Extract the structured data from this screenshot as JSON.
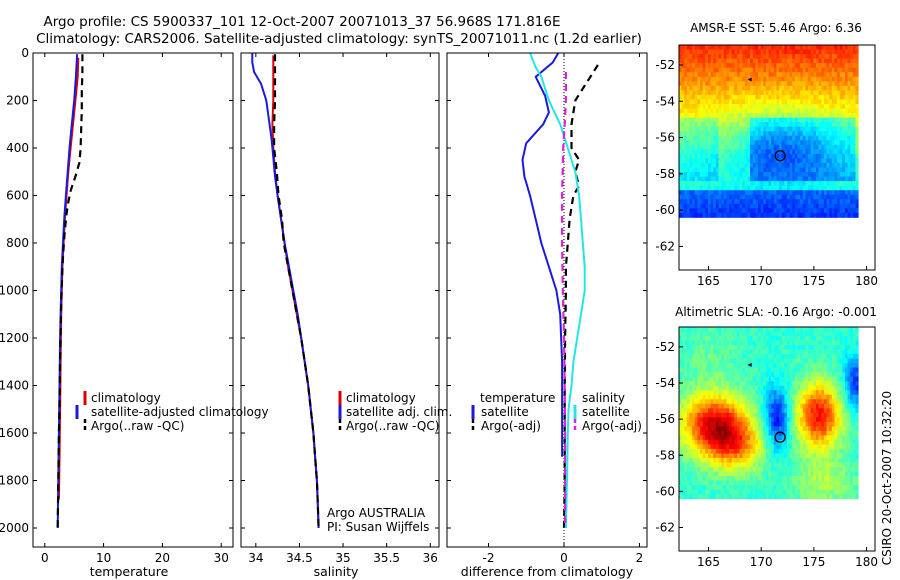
{
  "header": {
    "title_line1": "Argo profile: CS 5900337_101 12-Oct-2007 20071013_37 56.968S 171.816E",
    "title_line2": "Climatology: CARS2006. Satellite-adjusted climatology: synTS_20071011.nc (1.2d earlier)"
  },
  "colors": {
    "climatology": "#dd0000",
    "satellite": "#1a1adc",
    "argo": "#000000",
    "salinity_satellite": "#22e6e6",
    "salinity_argo": "#dd22dd"
  },
  "chart_data": [
    {
      "type": "line",
      "id": "temperature",
      "xlabel": "temperature",
      "xticks": [
        "0",
        "10",
        "20",
        "30"
      ],
      "yticks": [
        "0",
        "200",
        "400",
        "600",
        "800",
        "1000",
        "1200",
        "1400",
        "1600",
        "1800",
        "2000"
      ],
      "xlim": [
        -2,
        32
      ],
      "ylim": [
        2080,
        0
      ],
      "y_reversed": true,
      "legend_placement": "lower-right",
      "legend": [
        "climatology",
        "satellite-adjusted climatology",
        "Argo(..raw -QC)"
      ],
      "series": [
        {
          "name": "climatology",
          "color_key": "climatology",
          "dash": "solid",
          "points": [
            [
              5.7,
              20
            ],
            [
              5.6,
              100
            ],
            [
              5.2,
              200
            ],
            [
              4.8,
              300
            ],
            [
              4.4,
              400
            ],
            [
              4.0,
              500
            ],
            [
              3.7,
              600
            ],
            [
              3.4,
              700
            ],
            [
              3.2,
              800
            ],
            [
              3.0,
              900
            ],
            [
              2.9,
              1000
            ],
            [
              2.8,
              1100
            ],
            [
              2.75,
              1200
            ],
            [
              2.7,
              1300
            ],
            [
              2.65,
              1400
            ],
            [
              2.6,
              1500
            ],
            [
              2.55,
              1600
            ],
            [
              2.5,
              1700
            ],
            [
              2.45,
              1800
            ],
            [
              2.4,
              1880
            ]
          ]
        },
        {
          "name": "satellite-adjusted climatology",
          "color_key": "satellite",
          "dash": "solid",
          "points": [
            [
              5.5,
              5
            ],
            [
              5.3,
              100
            ],
            [
              5.0,
              200
            ],
            [
              4.6,
              300
            ],
            [
              4.2,
              400
            ],
            [
              3.9,
              500
            ],
            [
              3.6,
              600
            ],
            [
              3.3,
              700
            ],
            [
              3.1,
              800
            ],
            [
              2.9,
              900
            ],
            [
              2.8,
              1000
            ],
            [
              2.7,
              1100
            ],
            [
              2.6,
              1200
            ],
            [
              2.55,
              1300
            ],
            [
              2.5,
              1400
            ],
            [
              2.45,
              1500
            ],
            [
              2.4,
              1600
            ],
            [
              2.35,
              1700
            ],
            [
              2.3,
              1800
            ],
            [
              2.25,
              1900
            ],
            [
              2.2,
              2000
            ]
          ]
        },
        {
          "name": "Argo(..raw -QC)",
          "color_key": "argo",
          "dash": "dash",
          "points": [
            [
              6.4,
              5
            ],
            [
              6.4,
              80
            ],
            [
              6.3,
              160
            ],
            [
              6.3,
              240
            ],
            [
              6.2,
              320
            ],
            [
              6.1,
              400
            ],
            [
              5.9,
              460
            ],
            [
              5.2,
              520
            ],
            [
              4.4,
              580
            ],
            [
              3.9,
              640
            ],
            [
              3.6,
              700
            ],
            [
              3.3,
              780
            ],
            [
              3.1,
              860
            ],
            [
              2.95,
              940
            ],
            [
              2.85,
              1020
            ],
            [
              2.75,
              1100
            ],
            [
              2.7,
              1200
            ],
            [
              2.6,
              1300
            ],
            [
              2.55,
              1400
            ],
            [
              2.5,
              1500
            ],
            [
              2.4,
              1600
            ],
            [
              2.35,
              1700
            ],
            [
              2.3,
              1800
            ],
            [
              2.25,
              1900
            ],
            [
              2.2,
              2000
            ]
          ]
        }
      ]
    },
    {
      "type": "line",
      "id": "salinity",
      "xlabel": "salinity",
      "xticks": [
        "34",
        "34.5",
        "35",
        "35.5",
        "36"
      ],
      "yticks": [],
      "xlim": [
        33.83,
        36.1
      ],
      "ylim": [
        2080,
        0
      ],
      "y_reversed": true,
      "legend_placement": "lower-right",
      "legend": [
        "climatology",
        "satellite adj. clim.",
        "Argo(..raw -QC)"
      ],
      "annotations": [
        "Argo AUSTRALIA",
        "PI: Susan Wijffels"
      ],
      "series": [
        {
          "name": "climatology",
          "color_key": "climatology",
          "dash": "solid",
          "points": [
            [
              34.2,
              10
            ],
            [
              34.2,
              100
            ],
            [
              34.2,
              200
            ],
            [
              34.19,
              300
            ],
            [
              34.2,
              400
            ],
            [
              34.22,
              500
            ],
            [
              34.25,
              600
            ],
            [
              34.29,
              700
            ],
            [
              34.33,
              800
            ],
            [
              34.37,
              900
            ],
            [
              34.42,
              1000
            ],
            [
              34.47,
              1100
            ],
            [
              34.52,
              1200
            ],
            [
              34.56,
              1300
            ],
            [
              34.6,
              1400
            ],
            [
              34.63,
              1500
            ],
            [
              34.66,
              1600
            ],
            [
              34.68,
              1700
            ],
            [
              34.7,
              1800
            ],
            [
              34.71,
              1900
            ],
            [
              34.72,
              2000
            ]
          ]
        },
        {
          "name": "satellite adj. clim.",
          "color_key": "satellite",
          "dash": "solid",
          "points": [
            [
              33.96,
              0
            ],
            [
              33.96,
              40
            ],
            [
              33.98,
              80
            ],
            [
              34.06,
              130
            ],
            [
              34.12,
              200
            ],
            [
              34.15,
              280
            ],
            [
              34.18,
              360
            ],
            [
              34.2,
              440
            ],
            [
              34.22,
              520
            ],
            [
              34.25,
              600
            ],
            [
              34.29,
              700
            ],
            [
              34.33,
              800
            ],
            [
              34.38,
              900
            ],
            [
              34.43,
              1000
            ],
            [
              34.48,
              1100
            ],
            [
              34.52,
              1200
            ],
            [
              34.56,
              1300
            ],
            [
              34.6,
              1400
            ],
            [
              34.63,
              1500
            ],
            [
              34.66,
              1600
            ],
            [
              34.68,
              1700
            ],
            [
              34.7,
              1800
            ],
            [
              34.71,
              1900
            ],
            [
              34.72,
              2000
            ]
          ]
        },
        {
          "name": "Argo(..raw -QC)",
          "color_key": "argo",
          "dash": "dash",
          "points": [
            [
              34.22,
              5
            ],
            [
              34.22,
              100
            ],
            [
              34.22,
              200
            ],
            [
              34.21,
              300
            ],
            [
              34.21,
              400
            ],
            [
              34.24,
              500
            ],
            [
              34.26,
              600
            ],
            [
              34.3,
              700
            ],
            [
              34.32,
              800
            ],
            [
              34.37,
              900
            ],
            [
              34.42,
              1000
            ],
            [
              34.47,
              1100
            ],
            [
              34.52,
              1200
            ],
            [
              34.56,
              1300
            ],
            [
              34.6,
              1400
            ],
            [
              34.63,
              1500
            ],
            [
              34.66,
              1600
            ],
            [
              34.68,
              1700
            ],
            [
              34.7,
              1800
            ],
            [
              34.71,
              1900
            ],
            [
              34.72,
              2000
            ]
          ]
        }
      ]
    },
    {
      "type": "line",
      "id": "difference",
      "xlabel": "difference from climatology",
      "xticks": [
        "-2",
        "0",
        "2"
      ],
      "yticks": [],
      "xlim": [
        -3.1,
        2.2
      ],
      "ylim": [
        2080,
        0
      ],
      "y_reversed": true,
      "zero_line": true,
      "legend_placement": "lower-center",
      "legend_temperature_heading": "temperature",
      "legend_salinity_heading": "salinity",
      "legend_temperature": [
        "satellite",
        "Argo(-adj)"
      ],
      "legend_salinity": [
        "satellite",
        "Argo(-adj)"
      ],
      "series": [
        {
          "name": "temperature satellite",
          "color_key": "satellite",
          "dash": "solid",
          "points": [
            [
              -0.15,
              0
            ],
            [
              -0.3,
              40
            ],
            [
              -0.75,
              100
            ],
            [
              -0.5,
              180
            ],
            [
              -0.4,
              250
            ],
            [
              -0.55,
              300
            ],
            [
              -1.0,
              380
            ],
            [
              -1.1,
              450
            ],
            [
              -1.05,
              520
            ],
            [
              -0.9,
              600
            ],
            [
              -0.75,
              700
            ],
            [
              -0.6,
              800
            ],
            [
              -0.4,
              900
            ],
            [
              -0.2,
              1000
            ],
            [
              -0.1,
              1100
            ],
            [
              -0.05,
              1300
            ],
            [
              -0.05,
              1500
            ],
            [
              -0.05,
              1700
            ]
          ]
        },
        {
          "name": "temperature Argo(-adj)",
          "color_key": "argo",
          "dash": "dash",
          "points": [
            [
              0.9,
              50
            ],
            [
              0.7,
              100
            ],
            [
              0.5,
              150
            ],
            [
              0.3,
              200
            ],
            [
              0.2,
              300
            ],
            [
              0.2,
              400
            ],
            [
              0.4,
              450
            ],
            [
              0.3,
              500
            ],
            [
              0.4,
              560
            ],
            [
              0.25,
              600
            ],
            [
              0.15,
              700
            ],
            [
              0.1,
              800
            ],
            [
              0.05,
              900
            ],
            [
              0.05,
              1000
            ],
            [
              0.03,
              1200
            ],
            [
              0.02,
              1400
            ],
            [
              0.02,
              1600
            ],
            [
              0.02,
              1800
            ],
            [
              0.0,
              2000
            ]
          ]
        },
        {
          "name": "salinity satellite",
          "color_key": "salinity_satellite",
          "dash": "solid",
          "points": [
            [
              -0.9,
              0
            ],
            [
              -0.75,
              60
            ],
            [
              -0.6,
              100
            ],
            [
              -0.4,
              200
            ],
            [
              -0.1,
              300
            ],
            [
              0.1,
              400
            ],
            [
              0.3,
              500
            ],
            [
              0.4,
              600
            ],
            [
              0.45,
              700
            ],
            [
              0.5,
              800
            ],
            [
              0.55,
              900
            ],
            [
              0.55,
              1000
            ],
            [
              0.45,
              1100
            ],
            [
              0.35,
              1200
            ],
            [
              0.25,
              1300
            ],
            [
              0.2,
              1400
            ],
            [
              0.12,
              1500
            ],
            [
              0.1,
              1600
            ],
            [
              0.08,
              1800
            ],
            [
              0.05,
              2000
            ]
          ]
        },
        {
          "name": "salinity Argo(-adj)",
          "color_key": "salinity_argo",
          "dash": "dash",
          "points": [
            [
              0.05,
              80
            ],
            [
              0.05,
              200
            ],
            [
              0.02,
              300
            ],
            [
              -0.02,
              400
            ],
            [
              -0.05,
              600
            ],
            [
              -0.05,
              800
            ],
            [
              -0.03,
              1000
            ],
            [
              0.0,
              1200
            ],
            [
              0.02,
              1400
            ],
            [
              0.03,
              1600
            ],
            [
              0.03,
              1800
            ],
            [
              0.03,
              2000
            ]
          ]
        }
      ]
    },
    {
      "type": "heatmap",
      "id": "sst_map",
      "title": "AMSR-E SST: 5.46 Argo: 6.36",
      "xticks": [
        "165",
        "170",
        "175",
        "180"
      ],
      "yticks": [
        "-52",
        "-54",
        "-56",
        "-58",
        "-60",
        "-62"
      ],
      "xlim": [
        162.2,
        180.8
      ],
      "ylim": [
        -63.3,
        -50.9
      ],
      "data_extent": {
        "lon": [
          162.2,
          179
        ],
        "lat": [
          -60.2,
          -50.9
        ]
      },
      "float_position": {
        "lon": 171.8,
        "lat": -57.0
      },
      "arrow_position": {
        "lon": 169,
        "lat": -52.8
      },
      "colormap": "jet"
    },
    {
      "type": "heatmap",
      "id": "sla_map",
      "title": "Altimetric SLA: -0.16 Argo: -0.001",
      "xticks": [
        "165",
        "170",
        "175",
        "180"
      ],
      "yticks": [
        "-52",
        "-54",
        "-56",
        "-58",
        "-60",
        "-62"
      ],
      "xlim": [
        162.2,
        180.8
      ],
      "ylim": [
        -63.3,
        -50.9
      ],
      "data_extent": {
        "lon": [
          162.2,
          179
        ],
        "lat": [
          -60.2,
          -50.9
        ]
      },
      "float_position": {
        "lon": 171.8,
        "lat": -57.0
      },
      "arrow_position": {
        "lon": 169,
        "lat": -53.0
      },
      "colormap": "jet"
    }
  ],
  "credit": "CSIRO 20-Oct-2007 10:32:20"
}
